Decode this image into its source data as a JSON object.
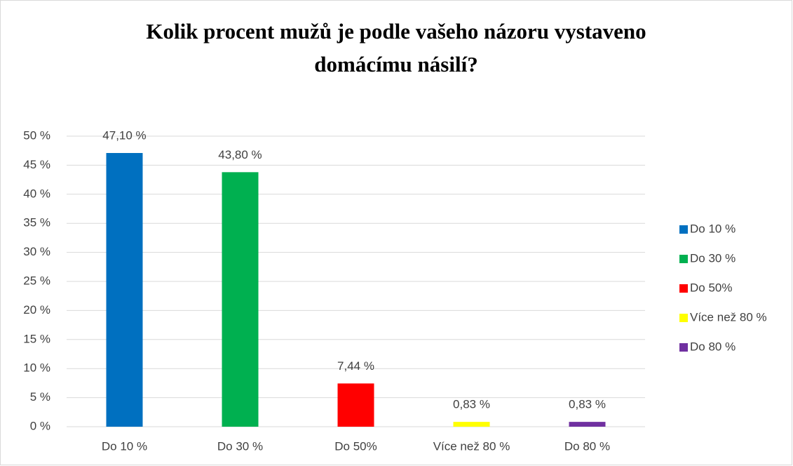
{
  "chart_data": {
    "type": "bar",
    "title": [
      "Kolik procent mužů je podle vašeho názoru vystaveno",
      "domácímu násilí?"
    ],
    "categories": [
      "Do 10 %",
      "Do 30 %",
      "Do 50%",
      "Více než 80 %",
      "Do 80 %"
    ],
    "values": [
      47.1,
      43.8,
      7.44,
      0.83,
      0.83
    ],
    "value_labels": [
      "47,10 %",
      "43,80 %",
      "7,44 %",
      "0,83 %",
      "0,83 %"
    ],
    "colors": [
      "#0070c0",
      "#00b050",
      "#ff0000",
      "#ffff00",
      "#7030a0"
    ],
    "ylim": [
      0,
      50
    ],
    "yticks": [
      {
        "value": 0,
        "label": "0 %"
      },
      {
        "value": 5,
        "label": "5 %"
      },
      {
        "value": 10,
        "label": "10 %"
      },
      {
        "value": 15,
        "label": "15 %"
      },
      {
        "value": 20,
        "label": "20 %"
      },
      {
        "value": 25,
        "label": "25 %"
      },
      {
        "value": 30,
        "label": "30 %"
      },
      {
        "value": 35,
        "label": "35 %"
      },
      {
        "value": 40,
        "label": "40 %"
      },
      {
        "value": 45,
        "label": "45 %"
      },
      {
        "value": 50,
        "label": "50 %"
      }
    ],
    "grid": true,
    "legend": "right"
  }
}
